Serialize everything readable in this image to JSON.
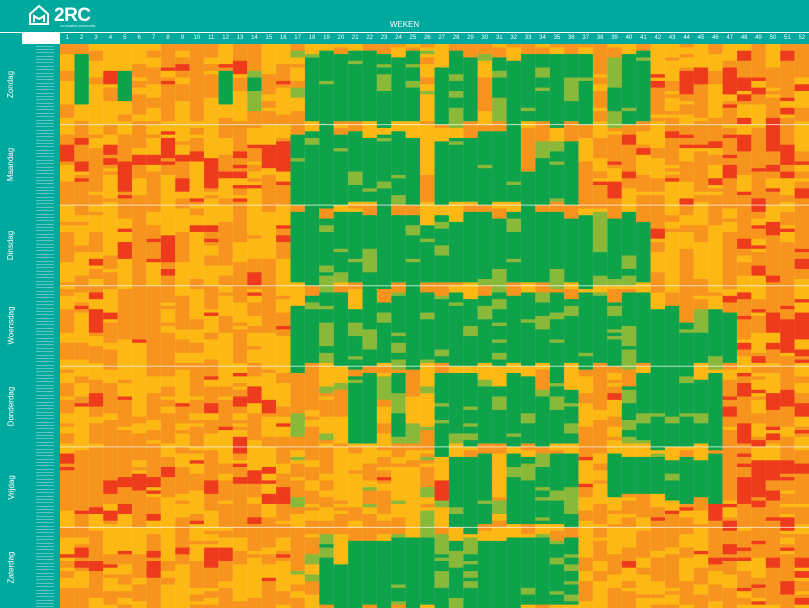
{
  "header": {
    "brand": "2RC",
    "tagline": "co-creation-community",
    "axis_title": "WEKEN"
  },
  "chart_data": {
    "type": "heatmap",
    "x_label": "WEKEN",
    "x_categories": [
      "1",
      "2",
      "3",
      "4",
      "5",
      "6",
      "7",
      "8",
      "9",
      "10",
      "11",
      "12",
      "13",
      "14",
      "15",
      "16",
      "17",
      "18",
      "19",
      "20",
      "21",
      "22",
      "23",
      "24",
      "25",
      "26",
      "27",
      "28",
      "29",
      "30",
      "31",
      "32",
      "33",
      "34",
      "35",
      "36",
      "37",
      "38",
      "39",
      "40",
      "41",
      "42",
      "43",
      "44",
      "45",
      "46",
      "47",
      "48",
      "49",
      "50",
      "51",
      "52"
    ],
    "y_groups": [
      "Zondag",
      "Maandag",
      "Dinsdag",
      "Woensdag",
      "Donderdag",
      "Vrijdag",
      "Zaterdag"
    ],
    "rows_per_group": 24,
    "colors": {
      "header": "#00a99d",
      "green": "#0ea34a",
      "lime": "#8ab838",
      "yellow": "#fdb813",
      "orange": "#f7941d",
      "red": "#ed3b1c"
    }
  }
}
